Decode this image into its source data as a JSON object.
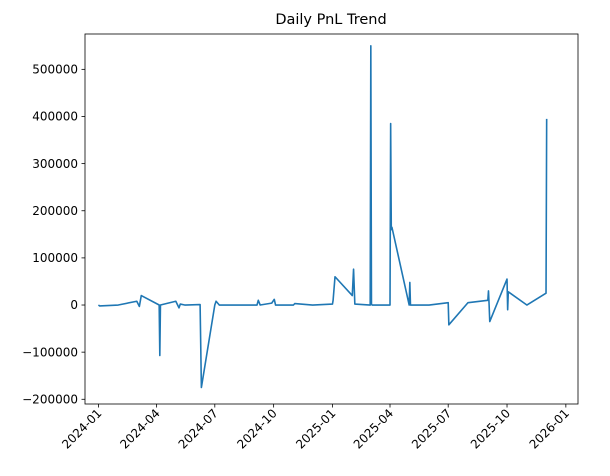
{
  "chart_data": {
    "type": "line",
    "title": "Daily PnL Trend",
    "xlabel": "",
    "ylabel": "",
    "grid": false,
    "legend": "none",
    "series_color": "#1f77b4",
    "xlim": [
      "2023-12-11",
      "2026-01-20"
    ],
    "ylim": [
      -210000,
      575000
    ],
    "x_ticks": [
      "2024-01",
      "2024-04",
      "2024-07",
      "2024-10",
      "2025-01",
      "2025-04",
      "2025-07",
      "2025-10",
      "2026-01"
    ],
    "y_ticks": [
      -200000,
      -100000,
      0,
      100000,
      200000,
      300000,
      400000,
      500000
    ],
    "y_tick_labels": [
      "−200000",
      "−100000",
      "0",
      "100000",
      "200000",
      "300000",
      "400000",
      "500000"
    ],
    "series": [
      {
        "x": [
          "2024-01-01",
          "2024-01-03",
          "2024-02-01",
          "2024-03-01",
          "2024-03-05",
          "2024-03-08",
          "2024-04-05",
          "2024-04-06",
          "2024-04-07",
          "2024-05-01",
          "2024-05-06",
          "2024-05-08",
          "2024-05-15",
          "2024-06-08",
          "2024-06-10",
          "2024-07-01",
          "2024-07-03",
          "2024-07-08",
          "2024-09-05",
          "2024-09-07",
          "2024-09-10",
          "2024-09-28",
          "2024-10-02",
          "2024-10-04",
          "2024-11-01",
          "2024-11-03",
          "2024-12-01",
          "2025-01-01",
          "2025-01-02",
          "2025-01-05",
          "2025-02-01",
          "2025-02-03",
          "2025-02-05",
          "2025-03-01",
          "2025-03-02",
          "2025-03-03",
          "2025-03-04",
          "2025-03-05",
          "2025-03-06",
          "2025-04-01",
          "2025-04-02",
          "2025-04-03",
          "2025-04-04",
          "2025-05-01",
          "2025-05-02",
          "2025-05-03",
          "2025-05-04",
          "2025-06-01",
          "2025-07-01",
          "2025-07-02",
          "2025-08-01",
          "2025-09-01",
          "2025-09-02",
          "2025-09-03",
          "2025-09-04",
          "2025-10-01",
          "2025-10-02",
          "2025-10-03",
          "2025-11-01",
          "2025-12-01",
          "2025-12-02"
        ],
        "values": [
          0,
          -2000,
          0,
          8000,
          -3000,
          20000,
          0,
          -107000,
          0,
          8000,
          -6000,
          2000,
          0,
          1000,
          -175000,
          0,
          8000,
          0,
          0,
          10000,
          0,
          4000,
          12000,
          0,
          0,
          3000,
          0,
          2000,
          10000,
          60000,
          20000,
          76000,
          2000,
          0,
          550000,
          2000,
          0,
          0,
          0,
          0,
          385000,
          160000,
          165000,
          0,
          48000,
          0,
          0,
          0,
          5000,
          -42000,
          5000,
          10000,
          30000,
          0,
          -35000,
          55000,
          -10000,
          28000,
          0,
          25000,
          395000
        ]
      }
    ]
  }
}
